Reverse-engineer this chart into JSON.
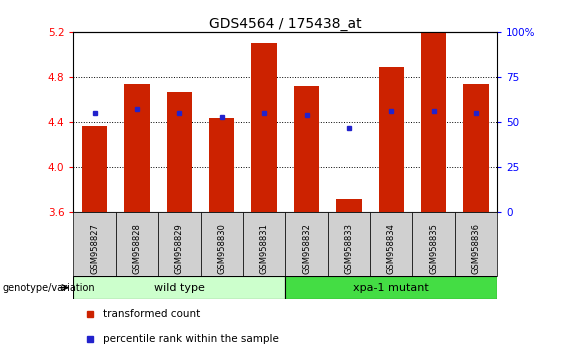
{
  "title": "GDS4564 / 175438_at",
  "samples": [
    "GSM958827",
    "GSM958828",
    "GSM958829",
    "GSM958830",
    "GSM958831",
    "GSM958832",
    "GSM958833",
    "GSM958834",
    "GSM958835",
    "GSM958836"
  ],
  "transformed_count": [
    4.37,
    4.74,
    4.67,
    4.44,
    5.1,
    4.72,
    3.72,
    4.89,
    5.2,
    4.74
  ],
  "percentile_rank": [
    55,
    57,
    55,
    53,
    55,
    54,
    47,
    56,
    56,
    55
  ],
  "ylim": [
    3.6,
    5.2
  ],
  "yticks": [
    3.6,
    4.0,
    4.4,
    4.8,
    5.2
  ],
  "right_ylim": [
    0,
    100
  ],
  "right_yticks": [
    0,
    25,
    50,
    75,
    100
  ],
  "right_yticklabels": [
    "0",
    "25",
    "50",
    "75",
    "100%"
  ],
  "bar_color": "#cc2200",
  "percentile_color": "#2222cc",
  "wild_type_label": "wild type",
  "mutant_label": "xpa-1 mutant",
  "wild_type_color": "#ccffcc",
  "mutant_color": "#44dd44",
  "genotype_label": "genotype/variation",
  "legend_items": [
    "transformed count",
    "percentile rank within the sample"
  ],
  "legend_colors": [
    "#cc2200",
    "#2222cc"
  ],
  "bar_width": 0.6,
  "baseline": 3.6,
  "title_fontsize": 10,
  "bg_color": "#ffffff"
}
